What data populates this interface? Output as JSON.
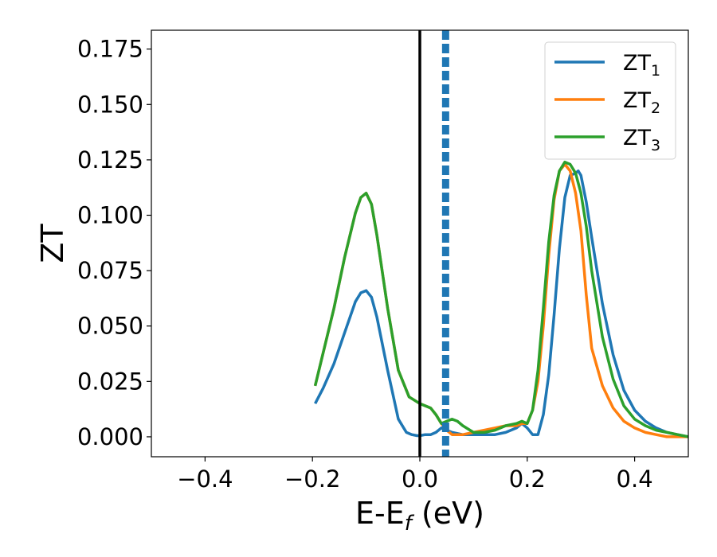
{
  "chart_data": {
    "type": "line",
    "xlabel": "E-E",
    "xlabel_sub": "f",
    "xlabel_unit": " (eV)",
    "ylabel": "ZT",
    "xlim": [
      -0.5,
      0.5
    ],
    "ylim": [
      -0.009,
      0.1835
    ],
    "xticks": [
      -0.4,
      -0.2,
      0.0,
      0.2,
      0.4
    ],
    "xtick_labels": [
      "−0.4",
      "−0.2",
      "0.0",
      "0.2",
      "0.4"
    ],
    "yticks": [
      0.0,
      0.025,
      0.05,
      0.075,
      0.1,
      0.125,
      0.15,
      0.175
    ],
    "ytick_labels": [
      "0.000",
      "0.025",
      "0.050",
      "0.075",
      "0.100",
      "0.125",
      "0.150",
      "0.175"
    ],
    "legend_position": "top-right",
    "grid": false,
    "vlines": [
      {
        "x": 0.0,
        "color": "#000000",
        "style": "solid"
      },
      {
        "x": 0.048,
        "color": "#1f77b4",
        "style": "dashed"
      }
    ],
    "series": [
      {
        "name": "ZT",
        "name_sub": "1",
        "color": "#1f77b4",
        "x": [
          -0.195,
          -0.18,
          -0.16,
          -0.14,
          -0.12,
          -0.11,
          -0.1,
          -0.09,
          -0.08,
          -0.06,
          -0.04,
          -0.025,
          -0.015,
          -0.005,
          0.0,
          0.01,
          0.02,
          0.03,
          0.04,
          0.05,
          0.06,
          0.08,
          0.1,
          0.12,
          0.14,
          0.16,
          0.18,
          0.19,
          0.2,
          0.21,
          0.22,
          0.23,
          0.24,
          0.25,
          0.26,
          0.27,
          0.28,
          0.29,
          0.295,
          0.3,
          0.31,
          0.32,
          0.34,
          0.36,
          0.38,
          0.4,
          0.42,
          0.44,
          0.46,
          0.48,
          0.5
        ],
        "y": [
          0.015,
          0.022,
          0.033,
          0.047,
          0.061,
          0.065,
          0.066,
          0.063,
          0.054,
          0.03,
          0.008,
          0.002,
          0.001,
          0.0005,
          0.0005,
          0.001,
          0.001,
          0.002,
          0.004,
          0.003,
          0.002,
          0.001,
          0.001,
          0.001,
          0.001,
          0.002,
          0.004,
          0.006,
          0.004,
          0.001,
          0.001,
          0.01,
          0.028,
          0.055,
          0.085,
          0.108,
          0.118,
          0.119,
          0.12,
          0.118,
          0.106,
          0.09,
          0.06,
          0.037,
          0.021,
          0.012,
          0.007,
          0.004,
          0.002,
          0.001,
          0.0
        ]
      },
      {
        "name": "ZT",
        "name_sub": "2",
        "color": "#ff7f0e",
        "x": [
          -0.195,
          -0.18,
          -0.16,
          -0.14,
          -0.12,
          -0.11,
          -0.1,
          -0.09,
          -0.08,
          -0.06,
          -0.04,
          -0.02,
          0.0,
          0.02,
          0.03,
          0.04,
          0.05,
          0.06,
          0.08,
          0.1,
          0.12,
          0.14,
          0.16,
          0.18,
          0.19,
          0.2,
          0.21,
          0.22,
          0.23,
          0.24,
          0.25,
          0.26,
          0.27,
          0.28,
          0.29,
          0.3,
          0.31,
          0.32,
          0.34,
          0.36,
          0.38,
          0.4,
          0.42,
          0.44,
          0.46,
          0.48,
          0.5
        ],
        "y": [
          0.023,
          0.038,
          0.058,
          0.081,
          0.101,
          0.108,
          0.11,
          0.105,
          0.091,
          0.058,
          0.03,
          0.018,
          0.015,
          0.013,
          0.01,
          0.006,
          0.003,
          0.001,
          0.001,
          0.002,
          0.003,
          0.004,
          0.005,
          0.005,
          0.006,
          0.006,
          0.012,
          0.025,
          0.05,
          0.082,
          0.107,
          0.12,
          0.123,
          0.12,
          0.11,
          0.093,
          0.064,
          0.04,
          0.023,
          0.013,
          0.007,
          0.004,
          0.002,
          0.001,
          0.0,
          0.0,
          0.0
        ]
      },
      {
        "name": "ZT",
        "name_sub": "3",
        "color": "#2ca02c",
        "x": [
          -0.195,
          -0.18,
          -0.16,
          -0.14,
          -0.12,
          -0.11,
          -0.1,
          -0.09,
          -0.08,
          -0.06,
          -0.04,
          -0.02,
          0.0,
          0.02,
          0.03,
          0.04,
          0.05,
          0.06,
          0.07,
          0.08,
          0.1,
          0.12,
          0.14,
          0.16,
          0.18,
          0.19,
          0.2,
          0.21,
          0.22,
          0.23,
          0.24,
          0.25,
          0.26,
          0.27,
          0.28,
          0.285,
          0.29,
          0.3,
          0.31,
          0.32,
          0.34,
          0.36,
          0.38,
          0.4,
          0.42,
          0.44,
          0.46,
          0.48,
          0.5
        ],
        "y": [
          0.023,
          0.038,
          0.058,
          0.081,
          0.101,
          0.108,
          0.11,
          0.105,
          0.091,
          0.058,
          0.03,
          0.018,
          0.015,
          0.013,
          0.01,
          0.006,
          0.007,
          0.008,
          0.007,
          0.005,
          0.002,
          0.002,
          0.003,
          0.005,
          0.006,
          0.007,
          0.006,
          0.012,
          0.03,
          0.058,
          0.088,
          0.109,
          0.12,
          0.124,
          0.123,
          0.121,
          0.119,
          0.11,
          0.095,
          0.075,
          0.045,
          0.026,
          0.014,
          0.008,
          0.005,
          0.003,
          0.002,
          0.001,
          0.0
        ]
      }
    ]
  }
}
